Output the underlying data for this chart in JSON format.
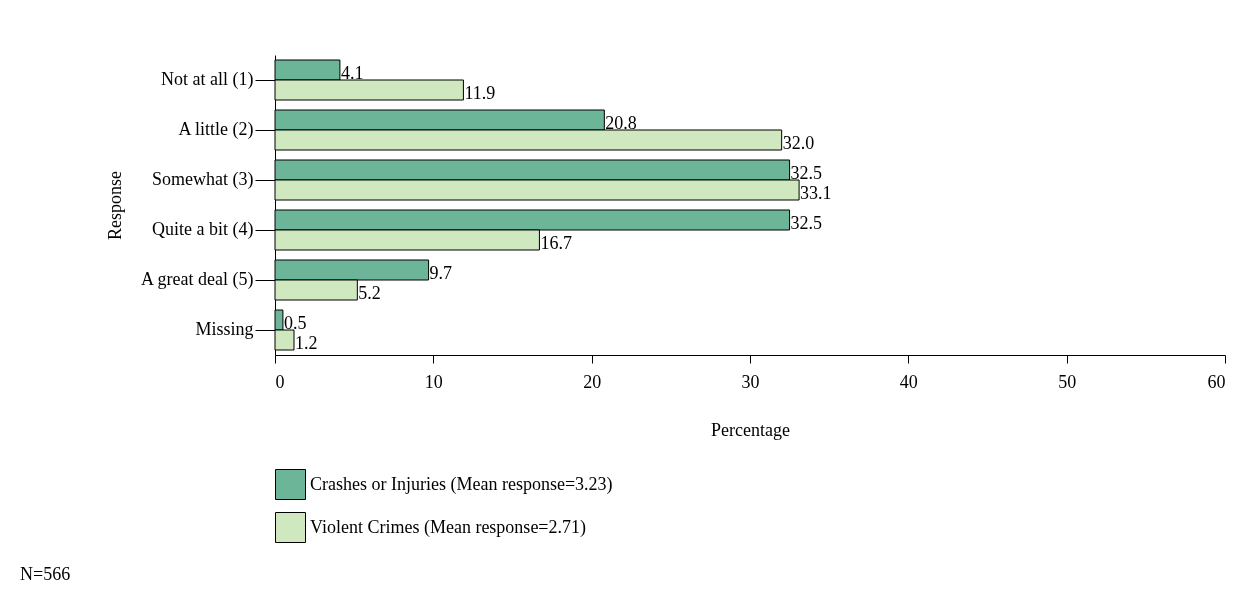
{
  "chart_data": {
    "type": "bar",
    "orientation": "horizontal",
    "xlabel": "Percentage",
    "ylabel": "Response",
    "categories": [
      "Not at all (1)",
      "A little (2)",
      "Somewhat (3)",
      "Quite a bit (4)",
      "A great deal (5)",
      "Missing"
    ],
    "series": [
      {
        "name": "Crashes or Injuries (Mean response=3.23)",
        "color": "#6db598",
        "values": [
          4.1,
          20.8,
          32.5,
          32.5,
          9.7,
          0.5
        ],
        "value_labels": [
          "4.1",
          "20.8",
          "32.5",
          "32.5",
          "9.7",
          "0.5"
        ]
      },
      {
        "name": "Violent Crimes (Mean response=2.71)",
        "color": "#cfe8c0",
        "values": [
          11.9,
          32.0,
          33.1,
          16.7,
          5.2,
          1.2
        ],
        "value_labels": [
          "11.9",
          "32.0",
          "33.1",
          "16.7",
          "5.2",
          "1.2"
        ]
      }
    ],
    "xlim": [
      0,
      60
    ],
    "xticks": [
      0,
      10,
      20,
      30,
      40,
      50,
      60
    ],
    "grid": false,
    "legend": "bottom",
    "annotations": [
      "N=566"
    ]
  }
}
